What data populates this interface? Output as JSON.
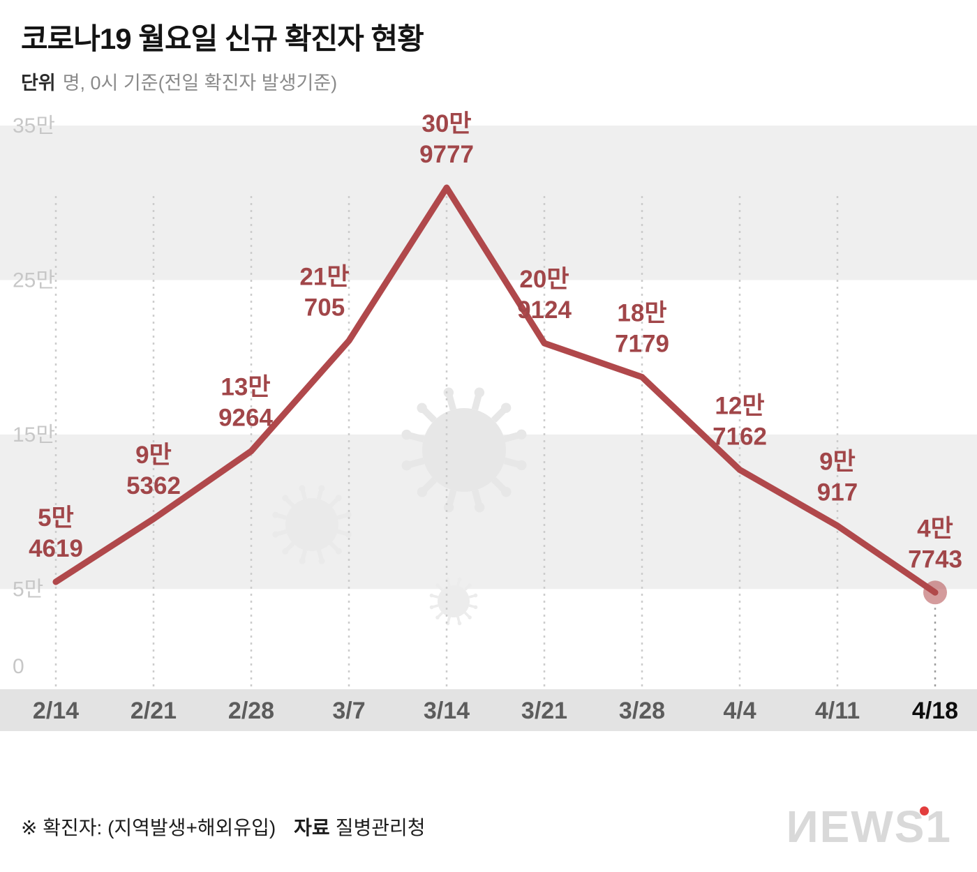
{
  "header": {
    "title": "코로나19 월요일 신규 확진자 현황",
    "unit_label": "단위",
    "subtitle": "명, 0시 기준(전일 확진자 발생기준)"
  },
  "chart_data": {
    "type": "line",
    "title": "코로나19 월요일 신규 확진자 현황",
    "categories": [
      "2/14",
      "2/21",
      "2/28",
      "3/7",
      "3/14",
      "3/21",
      "3/28",
      "4/4",
      "4/11",
      "4/18"
    ],
    "values": [
      54619,
      95362,
      139264,
      210705,
      309777,
      209124,
      187179,
      127162,
      90917,
      47743
    ],
    "point_labels": [
      [
        "5만",
        "4619"
      ],
      [
        "9만",
        "5362"
      ],
      [
        "13만",
        "9264"
      ],
      [
        "21만",
        "705"
      ],
      [
        "30만",
        "9777"
      ],
      [
        "20만",
        "9124"
      ],
      [
        "18만",
        "7179"
      ],
      [
        "12만",
        "7162"
      ],
      [
        "9만",
        "917"
      ],
      [
        "4만",
        "7743"
      ]
    ],
    "yticks": [
      {
        "label": "35만",
        "value": 350000
      },
      {
        "label": "25만",
        "value": 250000
      },
      {
        "label": "15만",
        "value": 150000
      },
      {
        "label": "5만",
        "value": 50000
      },
      {
        "label": "0",
        "value": 0
      }
    ],
    "ylim": [
      0,
      350000
    ],
    "gray_bands": [
      [
        250000,
        350000
      ],
      [
        50000,
        150000
      ]
    ],
    "grid": "dotted-vertical",
    "legend": "none",
    "line_color": "#b0484b",
    "label_color": "#a14649",
    "band_color": "#efefef",
    "axis_strip_color": "#e3e3e3",
    "ytick_color": "#c7c7c7",
    "xtick_color": "#5c5c5c",
    "xtick_last_color": "#0d0d0d",
    "label_dx": [
      0,
      0,
      -8,
      -35,
      0,
      0,
      0,
      0,
      0,
      0
    ]
  },
  "footer": {
    "note": "※ 확진자: (지역발생+해외유입)",
    "source_label": "자료",
    "source": "질병관리청",
    "logo_text": "ИEWS",
    "logo_one": "1"
  }
}
